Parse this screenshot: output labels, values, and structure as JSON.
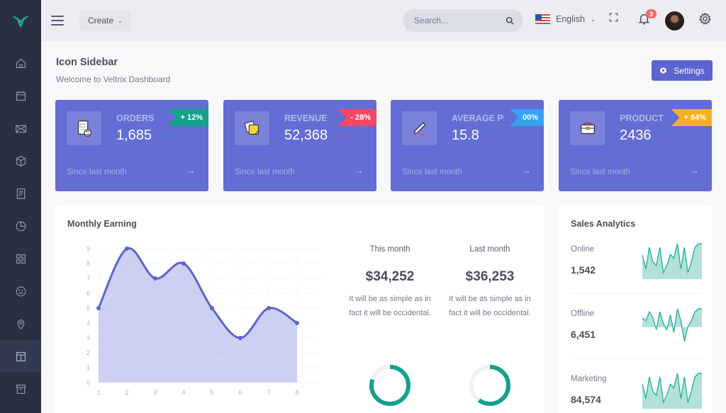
{
  "colors": {
    "sidebar": "#2a3042",
    "brand": "#1fa896",
    "card": "#636dd3",
    "accent": "#5b64cf",
    "success": "#12a38a",
    "danger": "#f14a66",
    "info": "#34a3f0",
    "warning": "#f4b022",
    "teal": "#14a08d"
  },
  "sidebar": {
    "logo": "veltrix-logo",
    "items": [
      {
        "name": "home",
        "icon": "home-icon"
      },
      {
        "name": "calendar",
        "icon": "calendar-icon"
      },
      {
        "name": "email",
        "icon": "mail-icon"
      },
      {
        "name": "ui-elements",
        "icon": "box-icon"
      },
      {
        "name": "forms",
        "icon": "document-icon"
      },
      {
        "name": "charts",
        "icon": "pie-chart-icon"
      },
      {
        "name": "tables",
        "icon": "grid-icon"
      },
      {
        "name": "icons",
        "icon": "smiley-icon"
      },
      {
        "name": "maps",
        "icon": "location-pin-icon"
      },
      {
        "name": "layouts",
        "icon": "layout-icon",
        "active": true
      },
      {
        "name": "pages",
        "icon": "archive-icon"
      }
    ]
  },
  "topbar": {
    "create_label": "Create",
    "search_placeholder": "Search...",
    "language": "English",
    "notification_count": "3"
  },
  "page": {
    "title": "Icon Sidebar",
    "subtitle": "Welcome to Veltrix Dashboard",
    "settings_label": "Settings"
  },
  "stats": [
    {
      "label": "ORDERS",
      "value": "1,685",
      "change": "+ 12%",
      "trend": "up",
      "since": "Since last month",
      "ribbon": "#12a38a"
    },
    {
      "label": "REVENUE",
      "value": "52,368",
      "change": "- 28%",
      "trend": "down",
      "since": "Since last month",
      "ribbon": "#f14a66"
    },
    {
      "label": "AVERAGE PRICE",
      "value": "15.8",
      "change": "00%",
      "trend": "up",
      "since": "Since last month",
      "ribbon": "#34a3f0"
    },
    {
      "label": "PRODUCT SOLD",
      "value": "2436",
      "change": "+ 84%",
      "trend": "up",
      "since": "Since last month",
      "ribbon": "#f4b022"
    }
  ],
  "monthly_earning": {
    "title": "Monthly Earning",
    "this_month": {
      "heading": "This month",
      "value": "$34,252",
      "description": "It will be as simple as in fact it will be occidental.",
      "progress": 0.8
    },
    "last_month": {
      "heading": "Last month",
      "value": "$36,253",
      "description": "It will be as simple as in fact it will be occidental.",
      "progress": 0.6
    }
  },
  "chart_data": {
    "type": "area",
    "title": "Monthly Earning",
    "x": [
      1,
      2,
      3,
      4,
      5,
      6,
      7,
      8
    ],
    "values": [
      5,
      9,
      7,
      8,
      5,
      3,
      5,
      4
    ],
    "xlim": [
      1,
      8
    ],
    "ylim": [
      0,
      9
    ],
    "yticks": [
      0,
      1,
      2,
      3,
      4,
      5,
      6,
      7,
      8,
      9
    ],
    "xticks": [
      1,
      2,
      3,
      4,
      5,
      6,
      7,
      8
    ],
    "grid": true,
    "xlabel": "",
    "ylabel": ""
  },
  "sales_analytics": {
    "title": "Sales Analytics",
    "items": [
      {
        "name": "Online",
        "value": "1,542",
        "spark": [
          6,
          2,
          8,
          4,
          3,
          8,
          1,
          3,
          6,
          5,
          9,
          2,
          8,
          1,
          4,
          8,
          9,
          9
        ]
      },
      {
        "name": "Offline",
        "value": "6,451",
        "spark": [
          6,
          5,
          8,
          6,
          2,
          8,
          4,
          2,
          7,
          1,
          9,
          5,
          -2,
          3,
          5,
          8,
          9,
          9
        ]
      },
      {
        "name": "Marketing",
        "value": "84,574",
        "spark": [
          6,
          2,
          8,
          4,
          3,
          8,
          1,
          3,
          6,
          5,
          9,
          2,
          8,
          1,
          4,
          8,
          9,
          9
        ]
      }
    ]
  }
}
